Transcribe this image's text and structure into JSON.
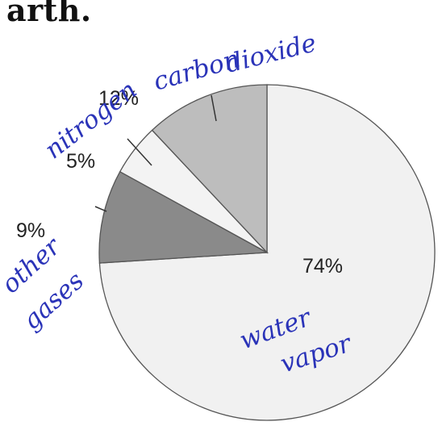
{
  "header": {
    "cropped_text": "arth."
  },
  "chart_data": {
    "type": "pie",
    "start_angle_deg": 90,
    "direction": "clockwise",
    "slices": [
      {
        "label": "74%",
        "value": 74,
        "color": "#f1f1f1"
      },
      {
        "label": "9%",
        "value": 9,
        "color": "#8a8a8a"
      },
      {
        "label": "5%",
        "value": 5,
        "color": "#f3f3f3"
      },
      {
        "label": "12%",
        "value": 12,
        "color": "#bdbdbd"
      }
    ]
  },
  "annotations": {
    "water_vapor_line1": "water",
    "water_vapor_line2": "vapor",
    "other_gases_line1": "other",
    "other_gases_line2": "gases",
    "nitrogen": "nitrogen",
    "carbon_dioxide_line1": "carbon",
    "carbon_dioxide_line2": "dioxide"
  }
}
